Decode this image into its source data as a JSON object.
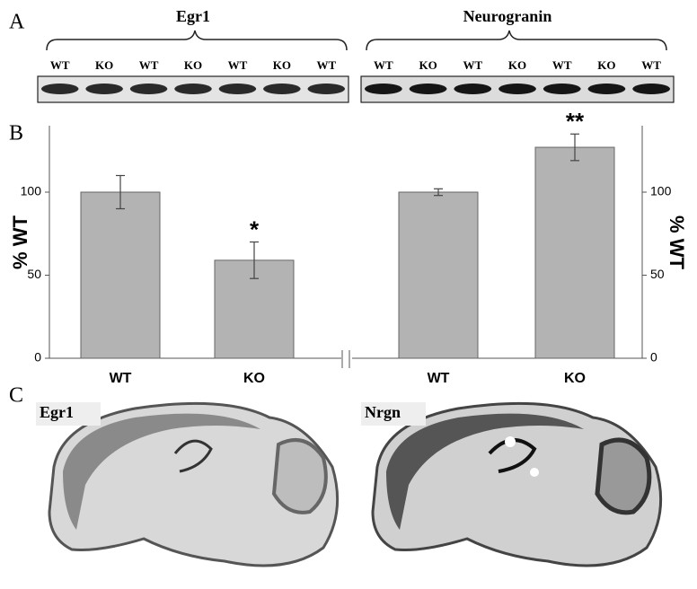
{
  "panel_a": {
    "label": "A",
    "blots": [
      {
        "title": "Egr1",
        "lanes": [
          "WT",
          "KO",
          "WT",
          "KO",
          "WT",
          "KO",
          "WT"
        ]
      },
      {
        "title": "Neurogranin",
        "lanes": [
          "WT",
          "KO",
          "WT",
          "KO",
          "WT",
          "KO",
          "WT"
        ]
      }
    ]
  },
  "chart_data": {
    "type": "bar",
    "label": "B",
    "ylabel": "% WT",
    "y2label": "% WT",
    "categories": [
      "WT",
      "KO",
      "WT",
      "KO"
    ],
    "values": [
      100,
      59,
      100,
      127
    ],
    "errors": [
      10,
      11,
      2,
      8
    ],
    "annotations": [
      null,
      "*",
      null,
      "**"
    ],
    "color": "#b3b3b3",
    "ylim": [
      0,
      140
    ],
    "yticks": [
      0,
      50,
      100
    ],
    "y2lim": [
      0,
      140
    ],
    "y2ticks": [
      0,
      50,
      100
    ]
  },
  "panel_c": {
    "label": "C",
    "images": [
      "Egr1",
      "Nrgn"
    ]
  }
}
